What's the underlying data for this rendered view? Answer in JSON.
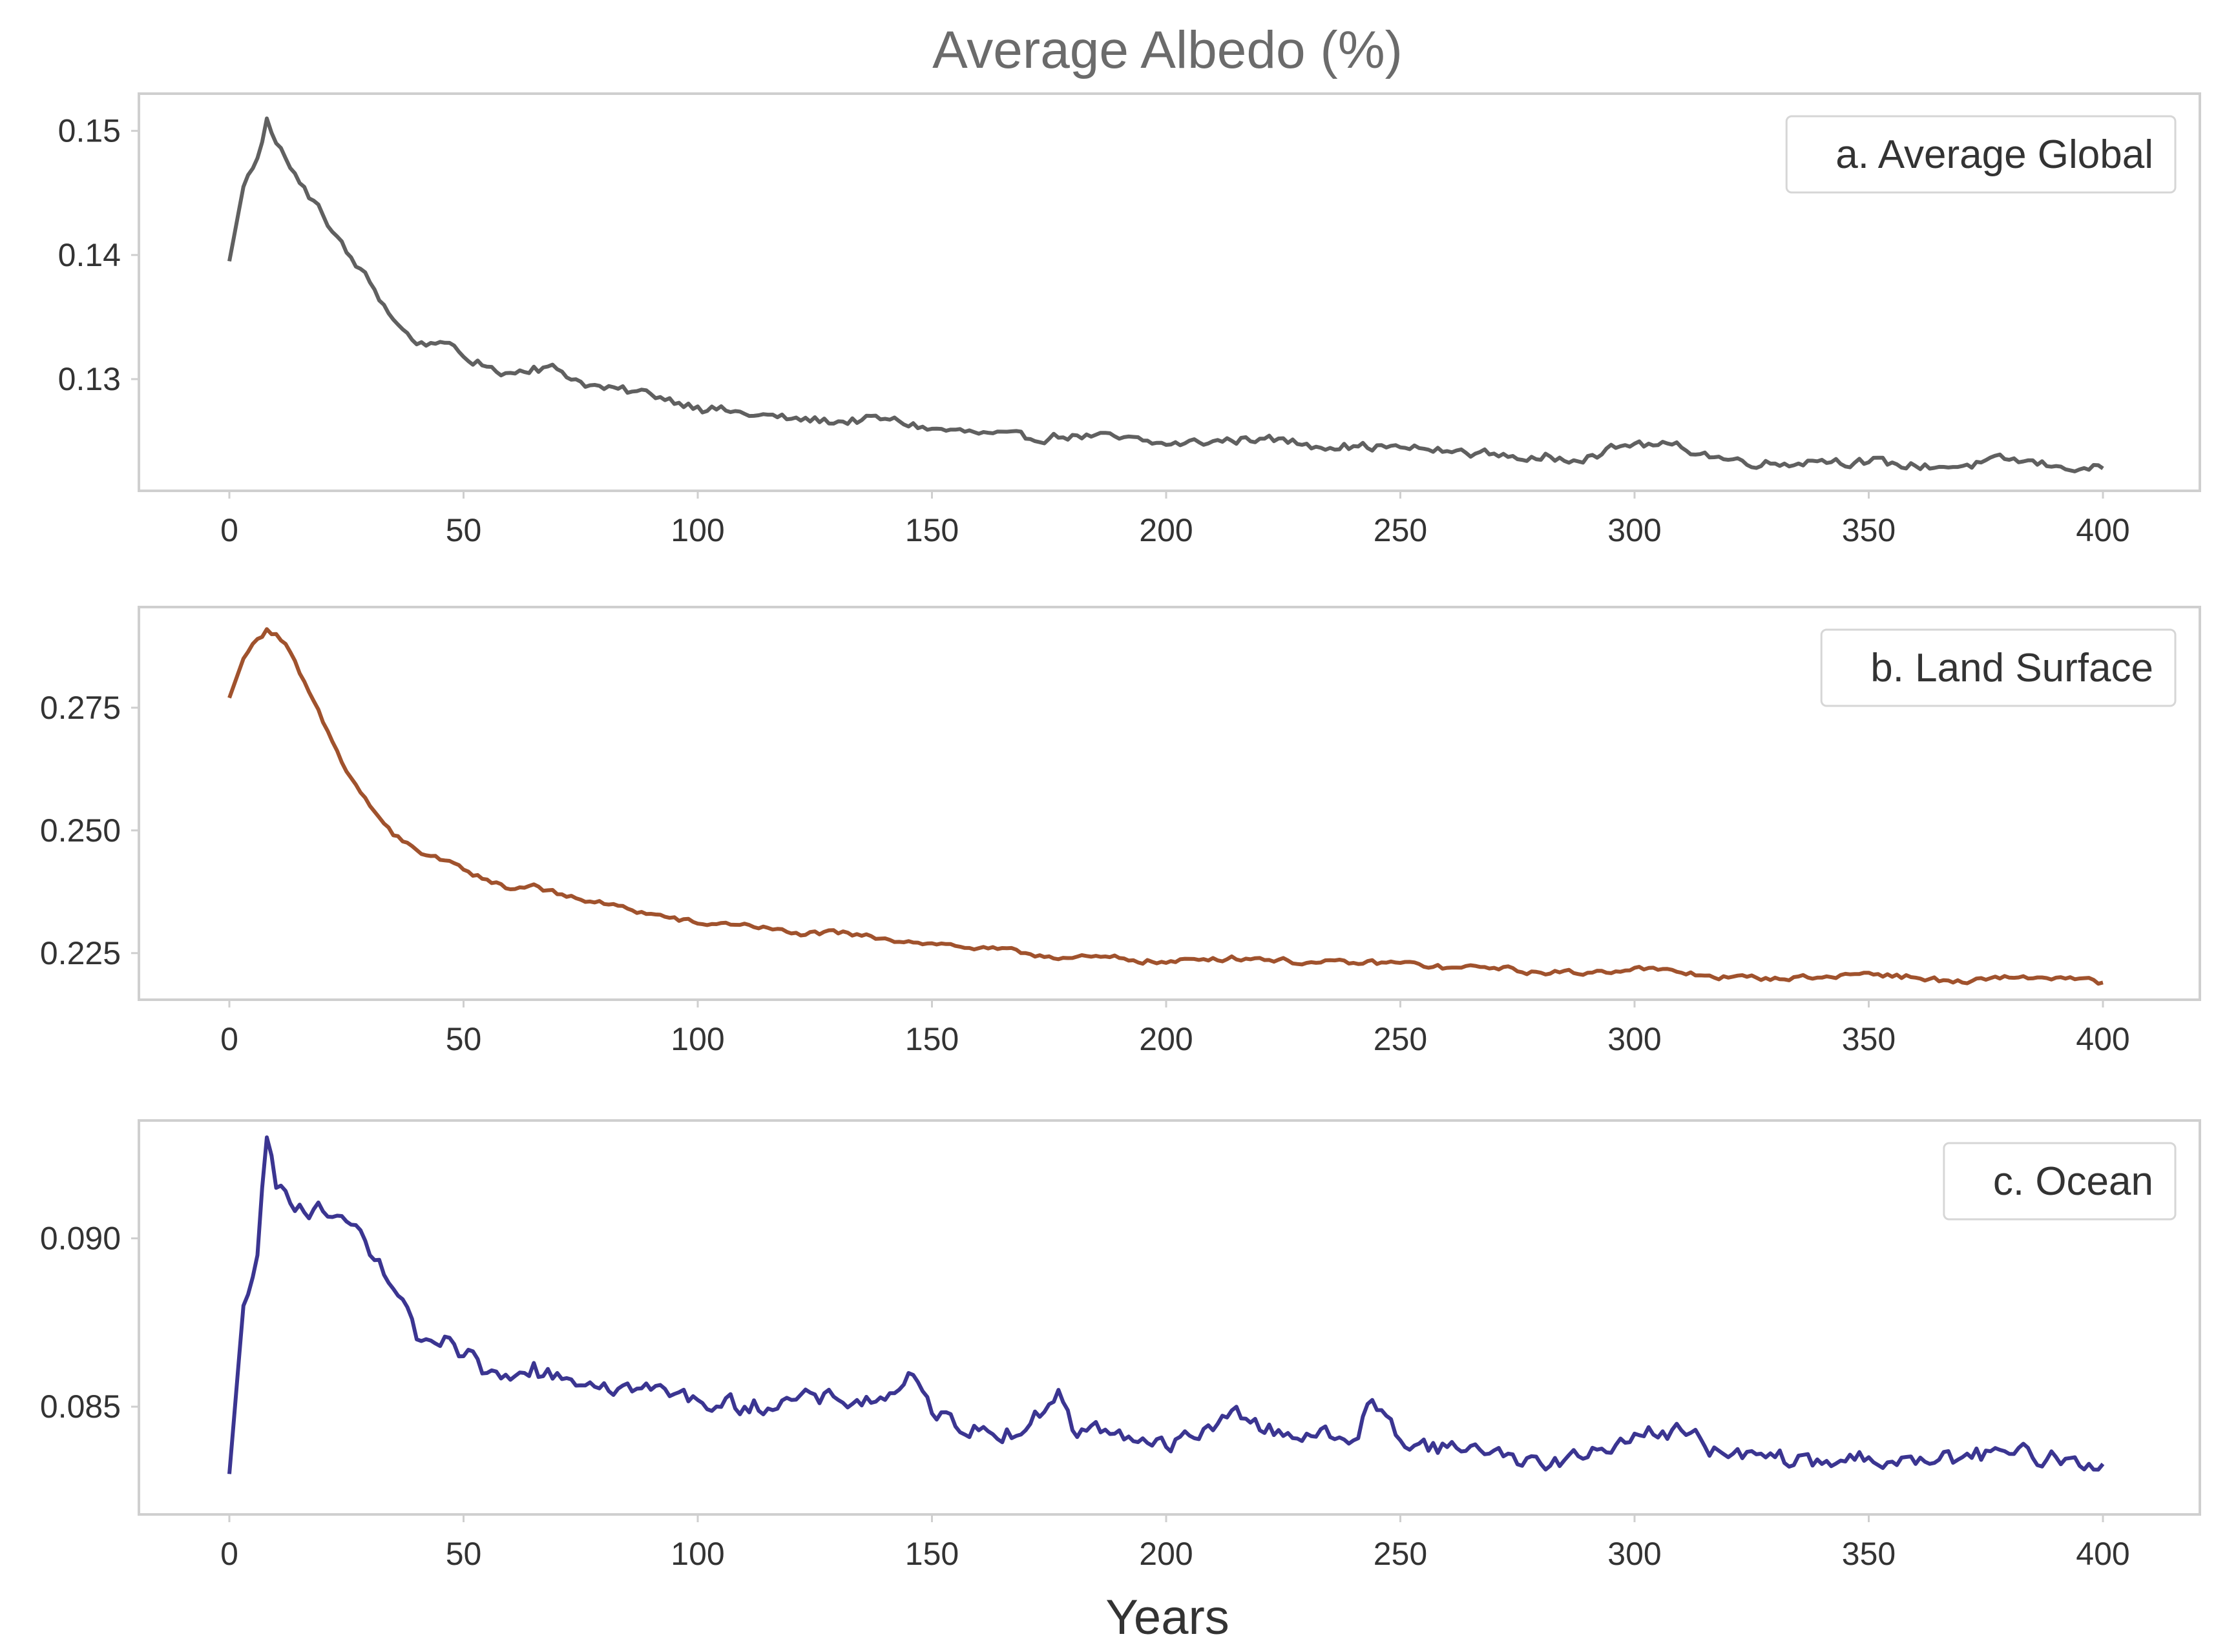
{
  "chart_data": {
    "type": "line",
    "title": "Average Albedo (%)",
    "xlabel": "Years",
    "x_range": [
      0,
      400
    ],
    "x_ticks": [
      0,
      50,
      100,
      150,
      200,
      250,
      300,
      350,
      400
    ],
    "x_tick_labels": [
      "0",
      "50",
      "100",
      "150",
      "200",
      "250",
      "300",
      "350",
      "400"
    ],
    "panels": [
      {
        "legend": "a. Average Global",
        "color": "#606060",
        "ylim": [
          0.121,
          0.153
        ],
        "y_ticks": [
          0.13,
          0.14,
          0.15
        ],
        "y_tick_labels": [
          "0.13",
          "0.14",
          "0.15"
        ],
        "legend_loc": "upper right",
        "points": [
          [
            0,
            0.1395
          ],
          [
            3,
            0.1455
          ],
          [
            6,
            0.1478
          ],
          [
            8,
            0.151
          ],
          [
            10,
            0.149
          ],
          [
            12,
            0.1478
          ],
          [
            15,
            0.1458
          ],
          [
            20,
            0.1432
          ],
          [
            25,
            0.1402
          ],
          [
            30,
            0.1378
          ],
          [
            35,
            0.1348
          ],
          [
            40,
            0.1328
          ],
          [
            45,
            0.133
          ],
          [
            50,
            0.1318
          ],
          [
            55,
            0.131
          ],
          [
            60,
            0.1305
          ],
          [
            65,
            0.131
          ],
          [
            70,
            0.1308
          ],
          [
            75,
            0.1298
          ],
          [
            80,
            0.1292
          ],
          [
            90,
            0.1288
          ],
          [
            100,
            0.1278
          ],
          [
            110,
            0.1272
          ],
          [
            120,
            0.1268
          ],
          [
            130,
            0.1266
          ],
          [
            140,
            0.1268
          ],
          [
            150,
            0.126
          ],
          [
            160,
            0.1256
          ],
          [
            170,
            0.1252
          ],
          [
            180,
            0.1255
          ],
          [
            190,
            0.1252
          ],
          [
            200,
            0.1247
          ],
          [
            210,
            0.125
          ],
          [
            220,
            0.1252
          ],
          [
            230,
            0.1248
          ],
          [
            240,
            0.1246
          ],
          [
            250,
            0.1245
          ],
          [
            260,
            0.1242
          ],
          [
            270,
            0.124
          ],
          [
            280,
            0.1235
          ],
          [
            290,
            0.1238
          ],
          [
            300,
            0.1248
          ],
          [
            310,
            0.1245
          ],
          [
            320,
            0.1235
          ],
          [
            330,
            0.1232
          ],
          [
            340,
            0.1235
          ],
          [
            350,
            0.1233
          ],
          [
            360,
            0.123
          ],
          [
            370,
            0.123
          ],
          [
            380,
            0.1235
          ],
          [
            390,
            0.123
          ],
          [
            400,
            0.1228
          ]
        ],
        "noise": 0.0006
      },
      {
        "legend": "b. Land Surface",
        "color": "#a0522d",
        "ylim": [
          0.2155,
          0.2955
        ],
        "y_ticks": [
          0.225,
          0.25,
          0.275
        ],
        "y_tick_labels": [
          "0.225",
          "0.250",
          "0.275"
        ],
        "legend_loc": "upper right",
        "points": [
          [
            0,
            0.277
          ],
          [
            3,
            0.285
          ],
          [
            6,
            0.289
          ],
          [
            8,
            0.291
          ],
          [
            10,
            0.29
          ],
          [
            12,
            0.288
          ],
          [
            15,
            0.282
          ],
          [
            20,
            0.272
          ],
          [
            25,
            0.262
          ],
          [
            30,
            0.255
          ],
          [
            35,
            0.249
          ],
          [
            40,
            0.246
          ],
          [
            45,
            0.244
          ],
          [
            50,
            0.242
          ],
          [
            55,
            0.24
          ],
          [
            60,
            0.238
          ],
          [
            65,
            0.239
          ],
          [
            70,
            0.237
          ],
          [
            80,
            0.235
          ],
          [
            90,
            0.233
          ],
          [
            100,
            0.231
          ],
          [
            110,
            0.231
          ],
          [
            120,
            0.229
          ],
          [
            130,
            0.229
          ],
          [
            140,
            0.228
          ],
          [
            150,
            0.227
          ],
          [
            160,
            0.226
          ],
          [
            170,
            0.225
          ],
          [
            180,
            0.224
          ],
          [
            190,
            0.224
          ],
          [
            200,
            0.223
          ],
          [
            210,
            0.224
          ],
          [
            220,
            0.224
          ],
          [
            230,
            0.223
          ],
          [
            240,
            0.223
          ],
          [
            250,
            0.223
          ],
          [
            260,
            0.222
          ],
          [
            270,
            0.222
          ],
          [
            280,
            0.221
          ],
          [
            290,
            0.221
          ],
          [
            300,
            0.222
          ],
          [
            310,
            0.221
          ],
          [
            320,
            0.22
          ],
          [
            330,
            0.22
          ],
          [
            340,
            0.22
          ],
          [
            350,
            0.221
          ],
          [
            360,
            0.22
          ],
          [
            370,
            0.219
          ],
          [
            380,
            0.22
          ],
          [
            390,
            0.22
          ],
          [
            400,
            0.219
          ]
        ],
        "noise": 0.0009
      },
      {
        "legend": "c. Ocean",
        "color": "#3b3591",
        "ylim": [
          0.0818,
          0.0935
        ],
        "y_ticks": [
          0.085,
          0.09
        ],
        "y_tick_labels": [
          "0.085",
          "0.090"
        ],
        "legend_loc": "upper right",
        "points": [
          [
            0,
            0.083
          ],
          [
            3,
            0.088
          ],
          [
            6,
            0.0895
          ],
          [
            8,
            0.093
          ],
          [
            10,
            0.0915
          ],
          [
            15,
            0.091
          ],
          [
            20,
            0.0908
          ],
          [
            25,
            0.0905
          ],
          [
            30,
            0.0895
          ],
          [
            35,
            0.0885
          ],
          [
            40,
            0.087
          ],
          [
            45,
            0.0868
          ],
          [
            50,
            0.0865
          ],
          [
            55,
            0.086
          ],
          [
            60,
            0.0858
          ],
          [
            65,
            0.0863
          ],
          [
            70,
            0.086
          ],
          [
            80,
            0.0857
          ],
          [
            90,
            0.0855
          ],
          [
            100,
            0.0852
          ],
          [
            110,
            0.085
          ],
          [
            120,
            0.0852
          ],
          [
            130,
            0.0852
          ],
          [
            140,
            0.0852
          ],
          [
            145,
            0.086
          ],
          [
            150,
            0.0848
          ],
          [
            160,
            0.0843
          ],
          [
            170,
            0.0843
          ],
          [
            177,
            0.0855
          ],
          [
            180,
            0.0843
          ],
          [
            190,
            0.0843
          ],
          [
            200,
            0.0838
          ],
          [
            210,
            0.0843
          ],
          [
            215,
            0.085
          ],
          [
            220,
            0.0843
          ],
          [
            230,
            0.0842
          ],
          [
            240,
            0.084
          ],
          [
            244,
            0.0852
          ],
          [
            250,
            0.084
          ],
          [
            260,
            0.0838
          ],
          [
            270,
            0.0837
          ],
          [
            280,
            0.0833
          ],
          [
            290,
            0.0835
          ],
          [
            300,
            0.0842
          ],
          [
            310,
            0.0843
          ],
          [
            320,
            0.0835
          ],
          [
            330,
            0.0835
          ],
          [
            340,
            0.0833
          ],
          [
            350,
            0.0835
          ],
          [
            360,
            0.0833
          ],
          [
            370,
            0.0835
          ],
          [
            380,
            0.0836
          ],
          [
            390,
            0.0835
          ],
          [
            400,
            0.0833
          ]
        ],
        "noise": 0.00045
      }
    ]
  }
}
